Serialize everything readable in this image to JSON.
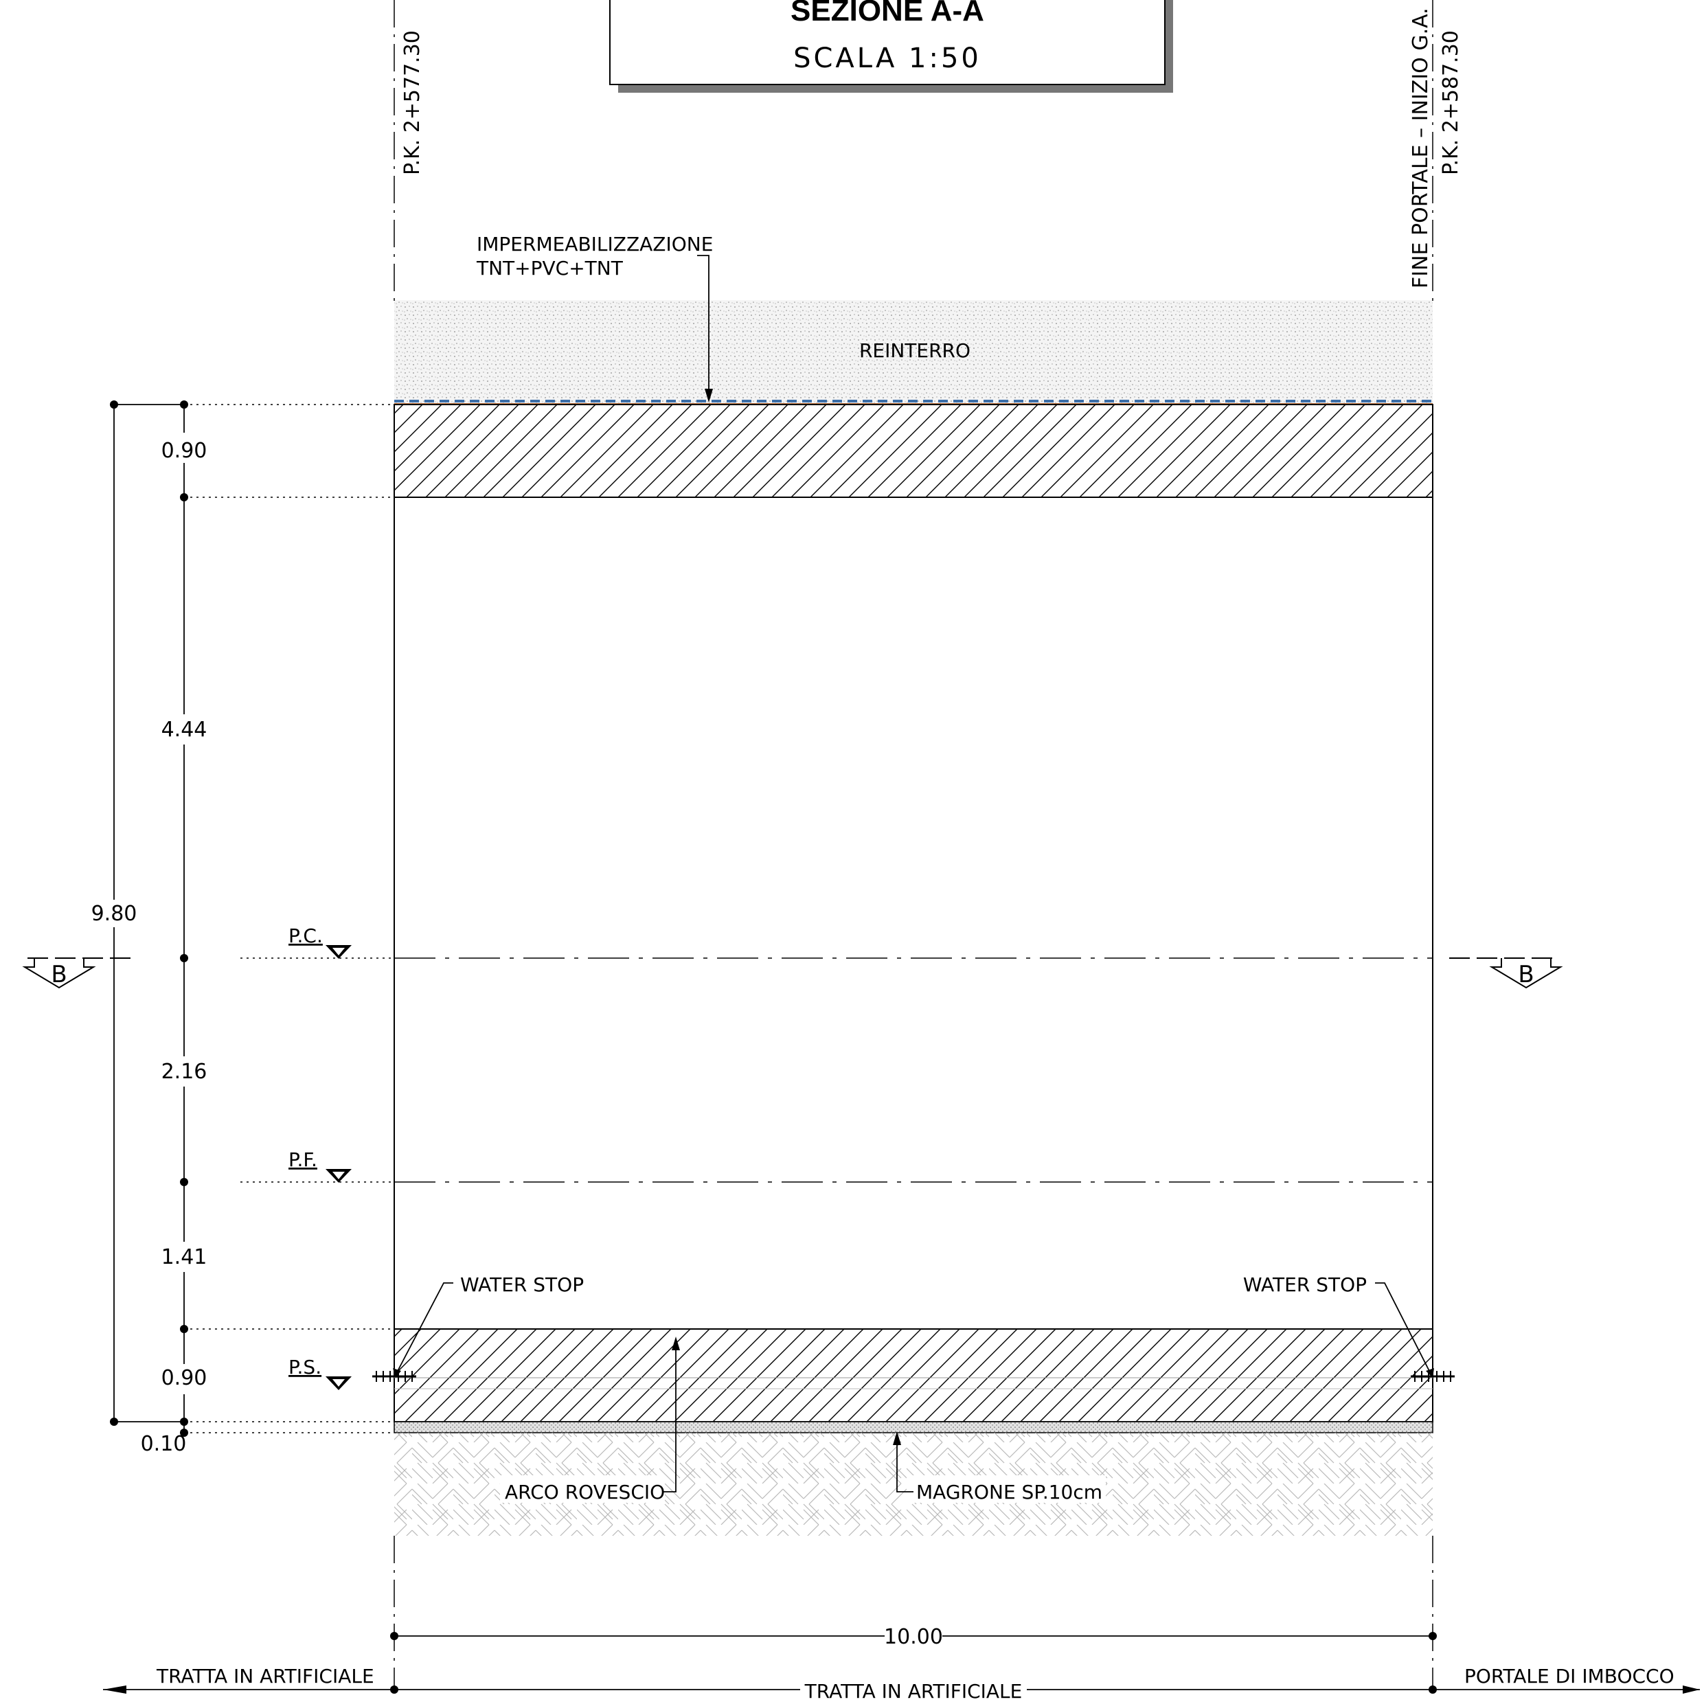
{
  "title_block": {
    "title": "SEZIONE A-A",
    "scale": "SCALA 1:50"
  },
  "stations": {
    "left": "P.K.  2+577.30",
    "right_line1": "FINE  PORTALE  –  INIZIO  G.A.",
    "right_line2": "P.K.  2+587.30"
  },
  "labels": {
    "waterproofing_line1": "IMPERMEABILIZZAZIONE",
    "waterproofing_line2": "TNT+PVC+TNT",
    "backfill": "REINTERRO",
    "water_stop_left": "WATER  STOP",
    "water_stop_right": "WATER  STOP",
    "invert_arch": "ARCO  ROVESCIO",
    "lean_concrete": "MAGRONE  SP.10cm"
  },
  "levels": {
    "pc": "P.C.",
    "pf": "P.F.",
    "ps": "P.S."
  },
  "dimensions": {
    "total": "9.80",
    "d1": "0.90",
    "d2": "4.44",
    "d3": "2.16",
    "d4": "1.41",
    "d5": "0.90",
    "d6": "0.10",
    "width": "10.00"
  },
  "section_marks": {
    "left": "B",
    "right": "B"
  },
  "bottom": {
    "left": "TRATTA  IN  ARTIFICIALE",
    "center": "TRATTA  IN  ARTIFICIALE",
    "right": "PORTALE  DI  IMBOCCO"
  }
}
